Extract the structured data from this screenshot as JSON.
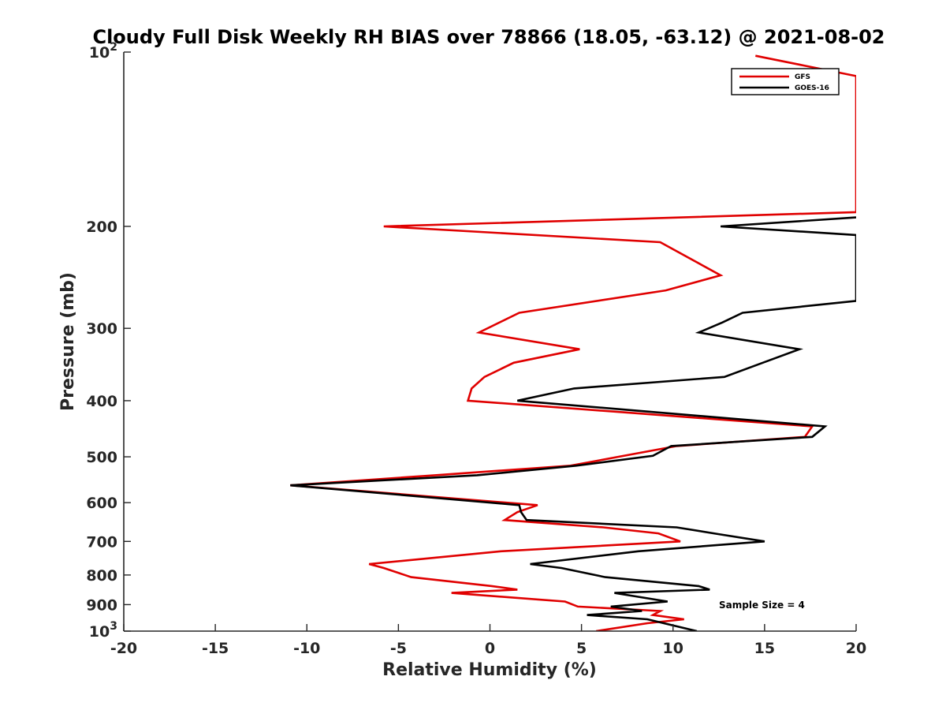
{
  "chart_data": {
    "type": "line",
    "title": "Cloudy Full Disk Weekly RH BIAS over 78866 (18.05, -63.12) @ 2021-08-02",
    "xlabel": "Relative Humidity (%)",
    "ylabel": "Pressure (mb)",
    "xlim": [
      -20,
      20
    ],
    "ylim": [
      100,
      1000
    ],
    "yscale": "log",
    "y_reversed": true,
    "x_ticks": [
      -20,
      -15,
      -10,
      -5,
      0,
      5,
      10,
      15,
      20
    ],
    "y_ticks": [
      {
        "value": 100,
        "label": "10",
        "sup": "2"
      },
      {
        "value": 200,
        "label": "200"
      },
      {
        "value": 300,
        "label": "300"
      },
      {
        "value": 400,
        "label": "400"
      },
      {
        "value": 500,
        "label": "500"
      },
      {
        "value": 600,
        "label": "600"
      },
      {
        "value": 700,
        "label": "700"
      },
      {
        "value": 800,
        "label": "800"
      },
      {
        "value": 900,
        "label": "900"
      },
      {
        "value": 1000,
        "label": "10",
        "sup": "3"
      }
    ],
    "grid": false,
    "legend_position": "top-right",
    "series": [
      {
        "name": "GFS",
        "color": "#e00000",
        "points": [
          [
            14.5,
            101.5
          ],
          [
            20,
            110
          ],
          [
            20,
            189
          ],
          [
            -5.8,
            200
          ],
          [
            9.3,
            213
          ],
          [
            12.6,
            243
          ],
          [
            9.6,
            258
          ],
          [
            1.6,
            282
          ],
          [
            -0.6,
            305
          ],
          [
            4.9,
            326
          ],
          [
            1.3,
            344
          ],
          [
            -0.3,
            364
          ],
          [
            -1.0,
            381
          ],
          [
            -1.2,
            400
          ],
          [
            17.6,
            443
          ],
          [
            17.2,
            462
          ],
          [
            10.2,
            479
          ],
          [
            4.4,
            518
          ],
          [
            -3.0,
            538
          ],
          [
            -10.9,
            560
          ],
          [
            2.6,
            606
          ],
          [
            1.5,
            623
          ],
          [
            0.8,
            643
          ],
          [
            6.2,
            662
          ],
          [
            9.2,
            678
          ],
          [
            10.4,
            700
          ],
          [
            0.6,
            728
          ],
          [
            -6.6,
            766
          ],
          [
            -5.8,
            778
          ],
          [
            -4.3,
            807
          ],
          [
            0.1,
            836
          ],
          [
            1.5,
            848
          ],
          [
            -2.1,
            859
          ],
          [
            4.1,
            889
          ],
          [
            4.8,
            907
          ],
          [
            9.3,
            923
          ],
          [
            8.9,
            938
          ],
          [
            10.6,
            954
          ],
          [
            8.6,
            969
          ],
          [
            5.8,
            1000
          ]
        ]
      },
      {
        "name": "GOES-16",
        "color": "#000000",
        "points": [
          [
            20,
            193
          ],
          [
            12.6,
            200
          ],
          [
            20,
            207
          ],
          [
            20,
            269
          ],
          [
            13.8,
            282
          ],
          [
            12.7,
            293
          ],
          [
            11.4,
            305
          ],
          [
            16.9,
            326
          ],
          [
            14.9,
            344
          ],
          [
            12.8,
            364
          ],
          [
            4.6,
            381
          ],
          [
            1.5,
            400
          ],
          [
            18.3,
            443
          ],
          [
            17.6,
            462
          ],
          [
            9.9,
            479
          ],
          [
            8.9,
            498
          ],
          [
            4.7,
            518
          ],
          [
            -0.7,
            538
          ],
          [
            -10.9,
            560
          ],
          [
            1.6,
            606
          ],
          [
            1.7,
            623
          ],
          [
            2.0,
            643
          ],
          [
            10.2,
            662
          ],
          [
            12.5,
            680
          ],
          [
            15.0,
            700
          ],
          [
            8.1,
            728
          ],
          [
            2.2,
            766
          ],
          [
            3.9,
            778
          ],
          [
            6.3,
            807
          ],
          [
            11.4,
            836
          ],
          [
            12.0,
            848
          ],
          [
            6.8,
            859
          ],
          [
            9.7,
            889
          ],
          [
            6.6,
            907
          ],
          [
            8.3,
            923
          ],
          [
            5.3,
            938
          ],
          [
            8.6,
            954
          ],
          [
            9.5,
            969
          ],
          [
            11.3,
            1000
          ]
        ]
      }
    ],
    "annotations": [
      "Sample Size = 4"
    ]
  }
}
